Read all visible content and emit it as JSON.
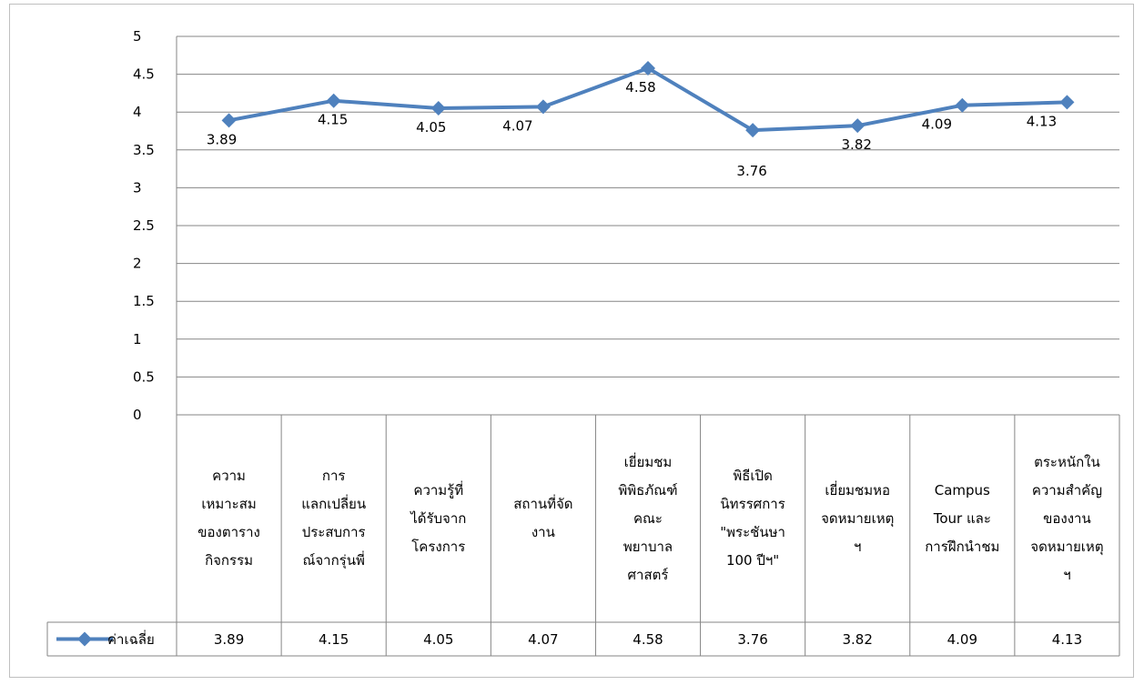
{
  "chart_data": {
    "type": "line",
    "title": "",
    "xlabel": "",
    "ylabel": "",
    "ylim": [
      0,
      5
    ],
    "yticks": [
      "0",
      "0.5",
      "1",
      "1.5",
      "2",
      "2.5",
      "3",
      "3.5",
      "4",
      "4.5",
      "5"
    ],
    "grid": true,
    "legend_position": "left of data table",
    "categories": [
      "ความเหมาะสมของตารางกิจกรรม",
      "การแลกเปลี่ยนประสบการณ์จากรุ่นพี่",
      "ความรู้ที่ได้รับจากโครงการ",
      "สถานที่จัดงาน",
      "เยี่ยมชมพิพิธภัณฑ์คณะพยาบาลศาสตร์",
      "พิธีเปิดนิทรรศการ \"พระชันษา 100 ปีฯ\"",
      "เยี่ยมชมหอจดหมายเหตุฯ",
      "Campus Tour และการฝึกนำชม",
      "ตระหนักในความสำคัญของงานจดหมายเหตุฯ"
    ],
    "category_lines": [
      [
        "ความ",
        "เหมาะสม",
        "ของตาราง",
        "กิจกรรม"
      ],
      [
        "การ",
        "แลกเปลี่ยน",
        "ประสบการ",
        "ณ์จากรุ่นพี่"
      ],
      [
        "ความรู้ที่",
        "ได้รับจาก",
        "โครงการ"
      ],
      [
        "สถานที่จัด",
        "งาน"
      ],
      [
        "เยี่ยมชม",
        "พิพิธภัณฑ์",
        "คณะ",
        "พยาบาล",
        "ศาสตร์"
      ],
      [
        "พิธีเปิด",
        "นิทรรศการ",
        "\"พระชันษา",
        "100 ปีฯ\""
      ],
      [
        "เยี่ยมชมหอ",
        "จดหมายเหตุ",
        "ฯ"
      ],
      [
        "Campus",
        "Tour และ",
        "การฝึกนำชม"
      ],
      [
        "ตระหนักใน",
        "ความสำคัญ",
        "ของงาน",
        "จดหมายเหตุ",
        "ฯ"
      ]
    ],
    "series": [
      {
        "name": "ค่าเฉลี่ย",
        "values": [
          3.89,
          4.15,
          4.05,
          4.07,
          4.58,
          3.76,
          3.82,
          4.09,
          4.13
        ],
        "value_labels": [
          "3.89",
          "4.15",
          "4.05",
          "4.07",
          "4.58",
          "3.76",
          "3.82",
          "4.09",
          "4.13"
        ],
        "color": "#4f81bd",
        "marker": "diamond"
      }
    ],
    "data_table": true
  }
}
